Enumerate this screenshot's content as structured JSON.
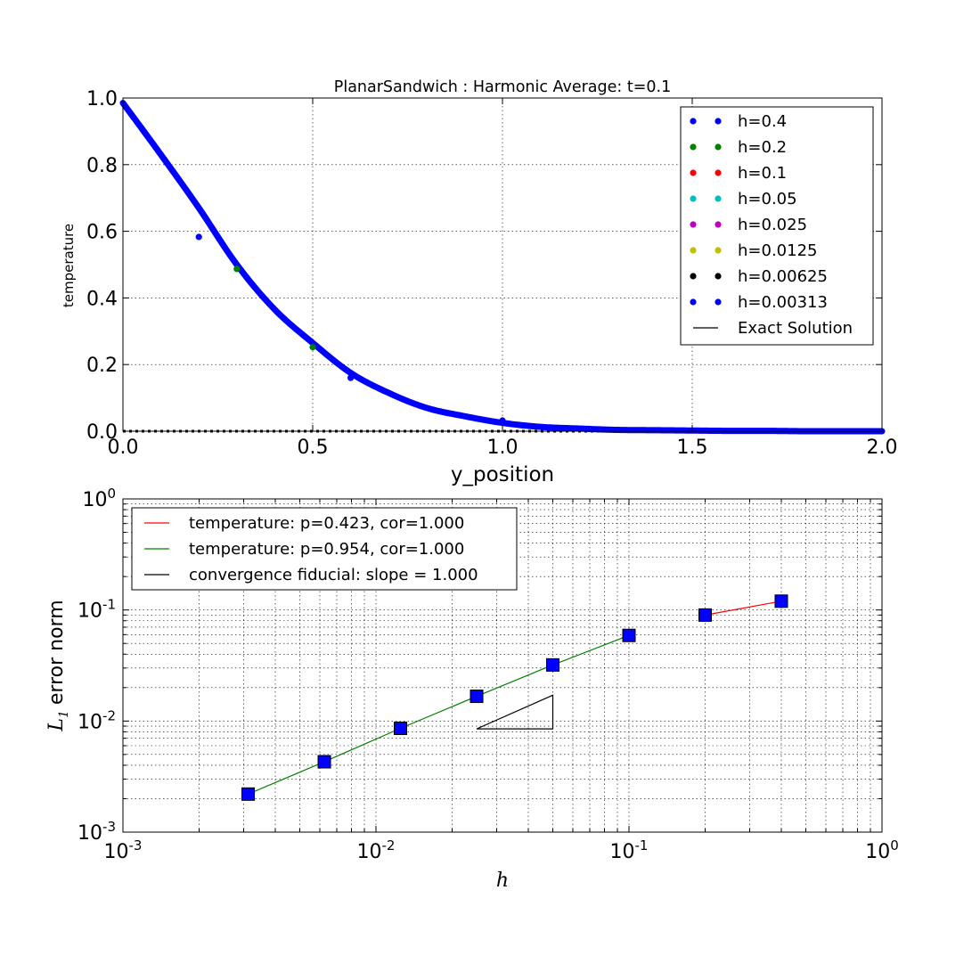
{
  "chart_data": [
    {
      "type": "scatter",
      "title": "PlanarSandwich : Harmonic Average: t=0.1",
      "xlabel": "y_position",
      "ylabel": "temperature",
      "xlim": [
        0.0,
        2.0
      ],
      "ylim": [
        0.0,
        1.0
      ],
      "x_ticks": [
        "0.0",
        "0.5",
        "1.0",
        "1.5",
        "2.0"
      ],
      "y_ticks": [
        "0.0",
        "0.2",
        "0.4",
        "0.6",
        "0.8",
        "1.0"
      ],
      "x_tick_values": [
        0.0,
        0.5,
        1.0,
        1.5,
        2.0
      ],
      "y_tick_values": [
        0.0,
        0.2,
        0.4,
        0.6,
        0.8,
        1.0
      ],
      "grid": true,
      "legend_position": "top-right",
      "series": [
        {
          "name": "h=0.4",
          "color": "#0000ff",
          "h": 0.4
        },
        {
          "name": "h=0.2",
          "color": "#008000",
          "h": 0.2
        },
        {
          "name": "h=0.1",
          "color": "#ff0000",
          "h": 0.1
        },
        {
          "name": "h=0.05",
          "color": "#00bfbf",
          "h": 0.05
        },
        {
          "name": "h=0.025",
          "color": "#bf00bf",
          "h": 0.025
        },
        {
          "name": "h=0.0125",
          "color": "#bfbf00",
          "h": 0.0125
        },
        {
          "name": "h=0.00625",
          "color": "#000000",
          "h": 0.00625
        },
        {
          "name": "h=0.00313",
          "color": "#0000ff",
          "h": 0.003125
        },
        {
          "name": "Exact Solution",
          "color": "#000000",
          "kind": "line"
        }
      ],
      "profile": {
        "x": [
          0.0,
          0.1,
          0.2,
          0.3,
          0.4,
          0.5,
          0.6,
          0.7,
          0.8,
          0.9,
          1.0,
          1.1,
          1.2,
          1.3,
          1.4,
          1.5,
          1.6,
          1.7,
          1.8,
          1.9,
          2.0
        ],
        "y": [
          0.985,
          0.83,
          0.67,
          0.5,
          0.365,
          0.265,
          0.175,
          0.115,
          0.07,
          0.045,
          0.025,
          0.013,
          0.008,
          0.004,
          0.003,
          0.002,
          0.001,
          0.001,
          0.0,
          0.0,
          0.0
        ]
      },
      "outlier_points": [
        {
          "x": 0.2,
          "y": 0.583,
          "series": "h=0.4"
        },
        {
          "x": 0.6,
          "y": 0.16,
          "series": "h=0.4"
        },
        {
          "x": 0.3,
          "y": 0.487,
          "series": "h=0.2"
        },
        {
          "x": 0.5,
          "y": 0.252,
          "series": "h=0.2"
        },
        {
          "x": 1.0,
          "y": 0.032,
          "series": "h=0.4"
        }
      ],
      "baseline_y": 0.0
    },
    {
      "type": "line",
      "xscale": "log",
      "yscale": "log",
      "xlabel": "h",
      "ylabel_text": "error norm",
      "ylabel_symbol": "L",
      "ylabel_subscript": "1",
      "xlim": [
        0.001,
        1.0
      ],
      "ylim": [
        0.001,
        1.0
      ],
      "x_ticks": [
        {
          "value": 0.001,
          "base": "10",
          "exp": "-3"
        },
        {
          "value": 0.01,
          "base": "10",
          "exp": "-2"
        },
        {
          "value": 0.1,
          "base": "10",
          "exp": "-1"
        },
        {
          "value": 1.0,
          "base": "10",
          "exp": "0"
        }
      ],
      "y_ticks": [
        {
          "value": 0.001,
          "base": "10",
          "exp": "-3"
        },
        {
          "value": 0.01,
          "base": "10",
          "exp": "-2"
        },
        {
          "value": 0.1,
          "base": "10",
          "exp": "-1"
        },
        {
          "value": 1.0,
          "base": "10",
          "exp": "0"
        }
      ],
      "grid": true,
      "legend_position": "top-left",
      "series": [
        {
          "name": "temperature: p=0.423, cor=1.000",
          "color": "#ff0000",
          "x": [
            0.2,
            0.4
          ],
          "y": [
            0.09,
            0.12
          ]
        },
        {
          "name": "temperature: p=0.954, cor=1.000",
          "color": "#008000",
          "x": [
            0.003125,
            0.00625,
            0.0125,
            0.025,
            0.05,
            0.1
          ],
          "y": [
            0.0022,
            0.0043,
            0.0086,
            0.0167,
            0.032,
            0.059
          ]
        },
        {
          "name": "convergence fiducial: slope = 1.000",
          "color": "#000000",
          "x": [
            0.025,
            0.05
          ],
          "y": [
            0.0085,
            0.0171
          ]
        }
      ],
      "markers": {
        "color": "#0000ff",
        "x": [
          0.003125,
          0.00625,
          0.0125,
          0.025,
          0.05,
          0.1,
          0.2,
          0.4
        ],
        "y": [
          0.0022,
          0.0043,
          0.0086,
          0.0167,
          0.032,
          0.059,
          0.09,
          0.12
        ]
      }
    }
  ]
}
